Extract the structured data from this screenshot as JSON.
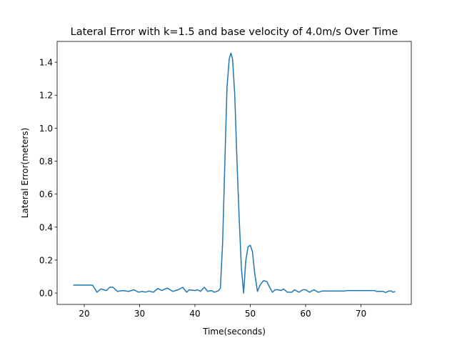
{
  "chart_data": {
    "type": "line",
    "title": "Lateral Error with k=1.5 and base velocity of 4.0m/s Over Time",
    "xlabel": "Time(seconds)",
    "ylabel": "Lateral Error(meters)",
    "xlim": [
      15.1,
      79.1
    ],
    "ylim": [
      -0.069,
      1.526
    ],
    "xticks": [
      20,
      30,
      40,
      50,
      60,
      70
    ],
    "yticks": [
      {
        "value": 0,
        "label": "0.0"
      },
      {
        "value": 0.2,
        "label": "0.2"
      },
      {
        "value": 0.4,
        "label": "0.4"
      },
      {
        "value": 0.6,
        "label": "0.6"
      },
      {
        "value": 0.8,
        "label": "0.8"
      },
      {
        "value": 1,
        "label": "1.0"
      },
      {
        "value": 1.2,
        "label": "1.2"
      },
      {
        "value": 1.4,
        "label": "1.4"
      }
    ],
    "series": [
      {
        "color": "#1f77b4",
        "x": [
          18,
          21.5,
          22.3,
          23,
          24,
          24.6,
          25.2,
          26,
          27,
          28,
          29,
          29.8,
          30.5,
          31,
          31.7,
          32.5,
          33.3,
          34,
          35,
          36,
          37,
          37.8,
          38.5,
          39,
          40,
          40.5,
          41,
          41.7,
          42.3,
          43,
          43.5,
          44.3,
          44.6,
          45,
          45.5,
          45.8,
          46.2,
          46.5,
          46.8,
          47.2,
          47.6,
          48,
          48.4,
          48.8,
          49.2,
          49.6,
          50,
          50.4,
          50.8,
          51.3,
          51.8,
          52.4,
          53,
          53.5,
          54,
          54.5,
          55,
          55.6,
          56,
          56.7,
          57.5,
          58,
          58.8,
          59.5,
          60,
          60.7,
          61.5,
          62.3,
          63,
          67,
          67.5,
          72.5,
          72.8,
          74,
          74.5,
          75,
          75.5,
          75.8,
          76.2
        ],
        "values": [
          0.048,
          0.048,
          0.005,
          0.025,
          0.015,
          0.035,
          0.035,
          0.01,
          0.015,
          0.01,
          0.02,
          0.005,
          0.01,
          0.005,
          0.012,
          0.005,
          0.028,
          0.015,
          0.03,
          0.01,
          0.02,
          0.035,
          0.005,
          0.02,
          0.015,
          0.02,
          0.01,
          0.035,
          0.01,
          0.015,
          0.005,
          0.015,
          0.03,
          0.3,
          0.9,
          1.25,
          1.42,
          1.455,
          1.42,
          1.2,
          0.8,
          0.45,
          0.15,
          0.0,
          0.2,
          0.28,
          0.29,
          0.25,
          0.12,
          0.01,
          0.05,
          0.075,
          0.07,
          0.035,
          0.005,
          0.02,
          0.02,
          0.015,
          0.025,
          0.005,
          0.005,
          0.02,
          0.005,
          0.02,
          0.02,
          0.005,
          0.02,
          0.005,
          0.012,
          0.012,
          0.015,
          0.015,
          0.01,
          0.01,
          0.003,
          0.012,
          0.012,
          0.005,
          0.01
        ]
      }
    ]
  }
}
